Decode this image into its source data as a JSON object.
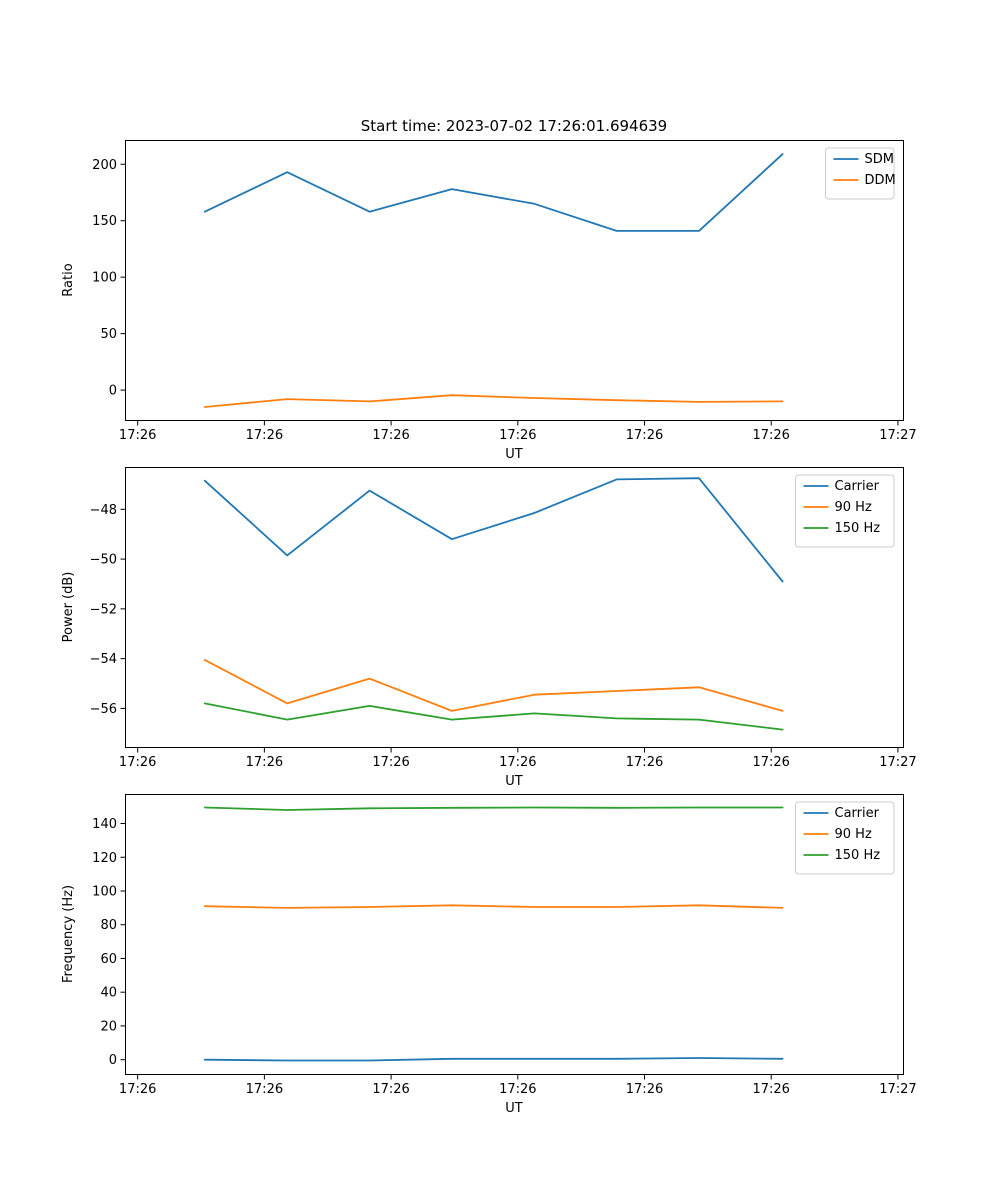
{
  "figure": {
    "title": "Start time: 2023-07-02 17:26:01.694639",
    "background": "#ffffff"
  },
  "colors": {
    "blue": "#1f77b4",
    "orange": "#ff7f0e",
    "green": "#2ca02c"
  },
  "chart_data": [
    {
      "name": "ratio",
      "type": "line",
      "title": "",
      "xlabel": "UT",
      "ylabel": "Ratio",
      "grid": false,
      "legend_position": "upper right",
      "xlim": [
        0,
        61.4
      ],
      "ylim": [
        -26.5,
        221.5
      ],
      "xticks": [
        1,
        11,
        21,
        31,
        41,
        51,
        61
      ],
      "xtick_labels": [
        "17:26",
        "17:26",
        "17:26",
        "17:26",
        "17:26",
        "17:26",
        "17:27"
      ],
      "yticks": [
        0,
        50,
        100,
        150,
        200
      ],
      "ytick_labels": [
        "0",
        "50",
        "100",
        "150",
        "200"
      ],
      "x": [
        6.3,
        12.8,
        19.3,
        25.8,
        32.3,
        38.8,
        45.3,
        51.9
      ],
      "series": [
        {
          "name": "SDM",
          "color": "#1f77b4",
          "values": [
            158,
            193,
            158,
            178,
            165,
            141,
            141,
            209
          ]
        },
        {
          "name": "DDM",
          "color": "#ff7f0e",
          "values": [
            -15,
            -8,
            -10,
            -4.5,
            -7,
            -9,
            -10.5,
            -10
          ]
        }
      ]
    },
    {
      "name": "power",
      "type": "line",
      "title": "",
      "xlabel": "UT",
      "ylabel": "Power (dB)",
      "grid": false,
      "legend_position": "upper right",
      "xlim": [
        0,
        61.4
      ],
      "ylim": [
        -57.55,
        -46.3
      ],
      "xticks": [
        1,
        11,
        21,
        31,
        41,
        51,
        61
      ],
      "xtick_labels": [
        "17:26",
        "17:26",
        "17:26",
        "17:26",
        "17:26",
        "17:26",
        "17:27"
      ],
      "yticks": [
        -48,
        -50,
        -52,
        -54,
        -56
      ],
      "ytick_labels": [
        "−48",
        "−50",
        "−52",
        "−54",
        "−56"
      ],
      "x": [
        6.3,
        12.8,
        19.3,
        25.8,
        32.3,
        38.8,
        45.3,
        51.9
      ],
      "series": [
        {
          "name": "Carrier",
          "color": "#1f77b4",
          "values": [
            -46.85,
            -49.85,
            -47.25,
            -49.2,
            -48.15,
            -46.8,
            -46.75,
            -50.9
          ]
        },
        {
          "name": "90 Hz",
          "color": "#ff7f0e",
          "values": [
            -54.05,
            -55.8,
            -54.8,
            -56.1,
            -55.45,
            -55.3,
            -55.15,
            -56.1
          ]
        },
        {
          "name": "150 Hz",
          "color": "#2ca02c",
          "values": [
            -55.8,
            -56.45,
            -55.9,
            -56.45,
            -56.2,
            -56.4,
            -56.45,
            -56.85
          ]
        }
      ]
    },
    {
      "name": "frequency",
      "type": "line",
      "title": "",
      "xlabel": "UT",
      "ylabel": "Frequency (Hz)",
      "grid": false,
      "legend_position": "upper right",
      "xlim": [
        0,
        61.4
      ],
      "ylim": [
        -8.5,
        157.5
      ],
      "xticks": [
        1,
        11,
        21,
        31,
        41,
        51,
        61
      ],
      "xtick_labels": [
        "17:26",
        "17:26",
        "17:26",
        "17:26",
        "17:26",
        "17:26",
        "17:27"
      ],
      "yticks": [
        0,
        20,
        40,
        60,
        80,
        100,
        120,
        140
      ],
      "ytick_labels": [
        "0",
        "20",
        "40",
        "60",
        "80",
        "100",
        "120",
        "140"
      ],
      "x": [
        6.3,
        12.8,
        19.3,
        25.8,
        32.3,
        38.8,
        45.3,
        51.9
      ],
      "series": [
        {
          "name": "Carrier",
          "color": "#1f77b4",
          "values": [
            0,
            -0.5,
            -0.5,
            0.5,
            0.5,
            0.5,
            1,
            0.5
          ]
        },
        {
          "name": "90 Hz",
          "color": "#ff7f0e",
          "values": [
            91,
            90,
            90.5,
            91.5,
            90.5,
            90.5,
            91.5,
            90
          ]
        },
        {
          "name": "150 Hz",
          "color": "#2ca02c",
          "values": [
            149.5,
            148,
            149,
            149.3,
            149.5,
            149.3,
            149.5,
            149.5
          ]
        }
      ]
    }
  ]
}
